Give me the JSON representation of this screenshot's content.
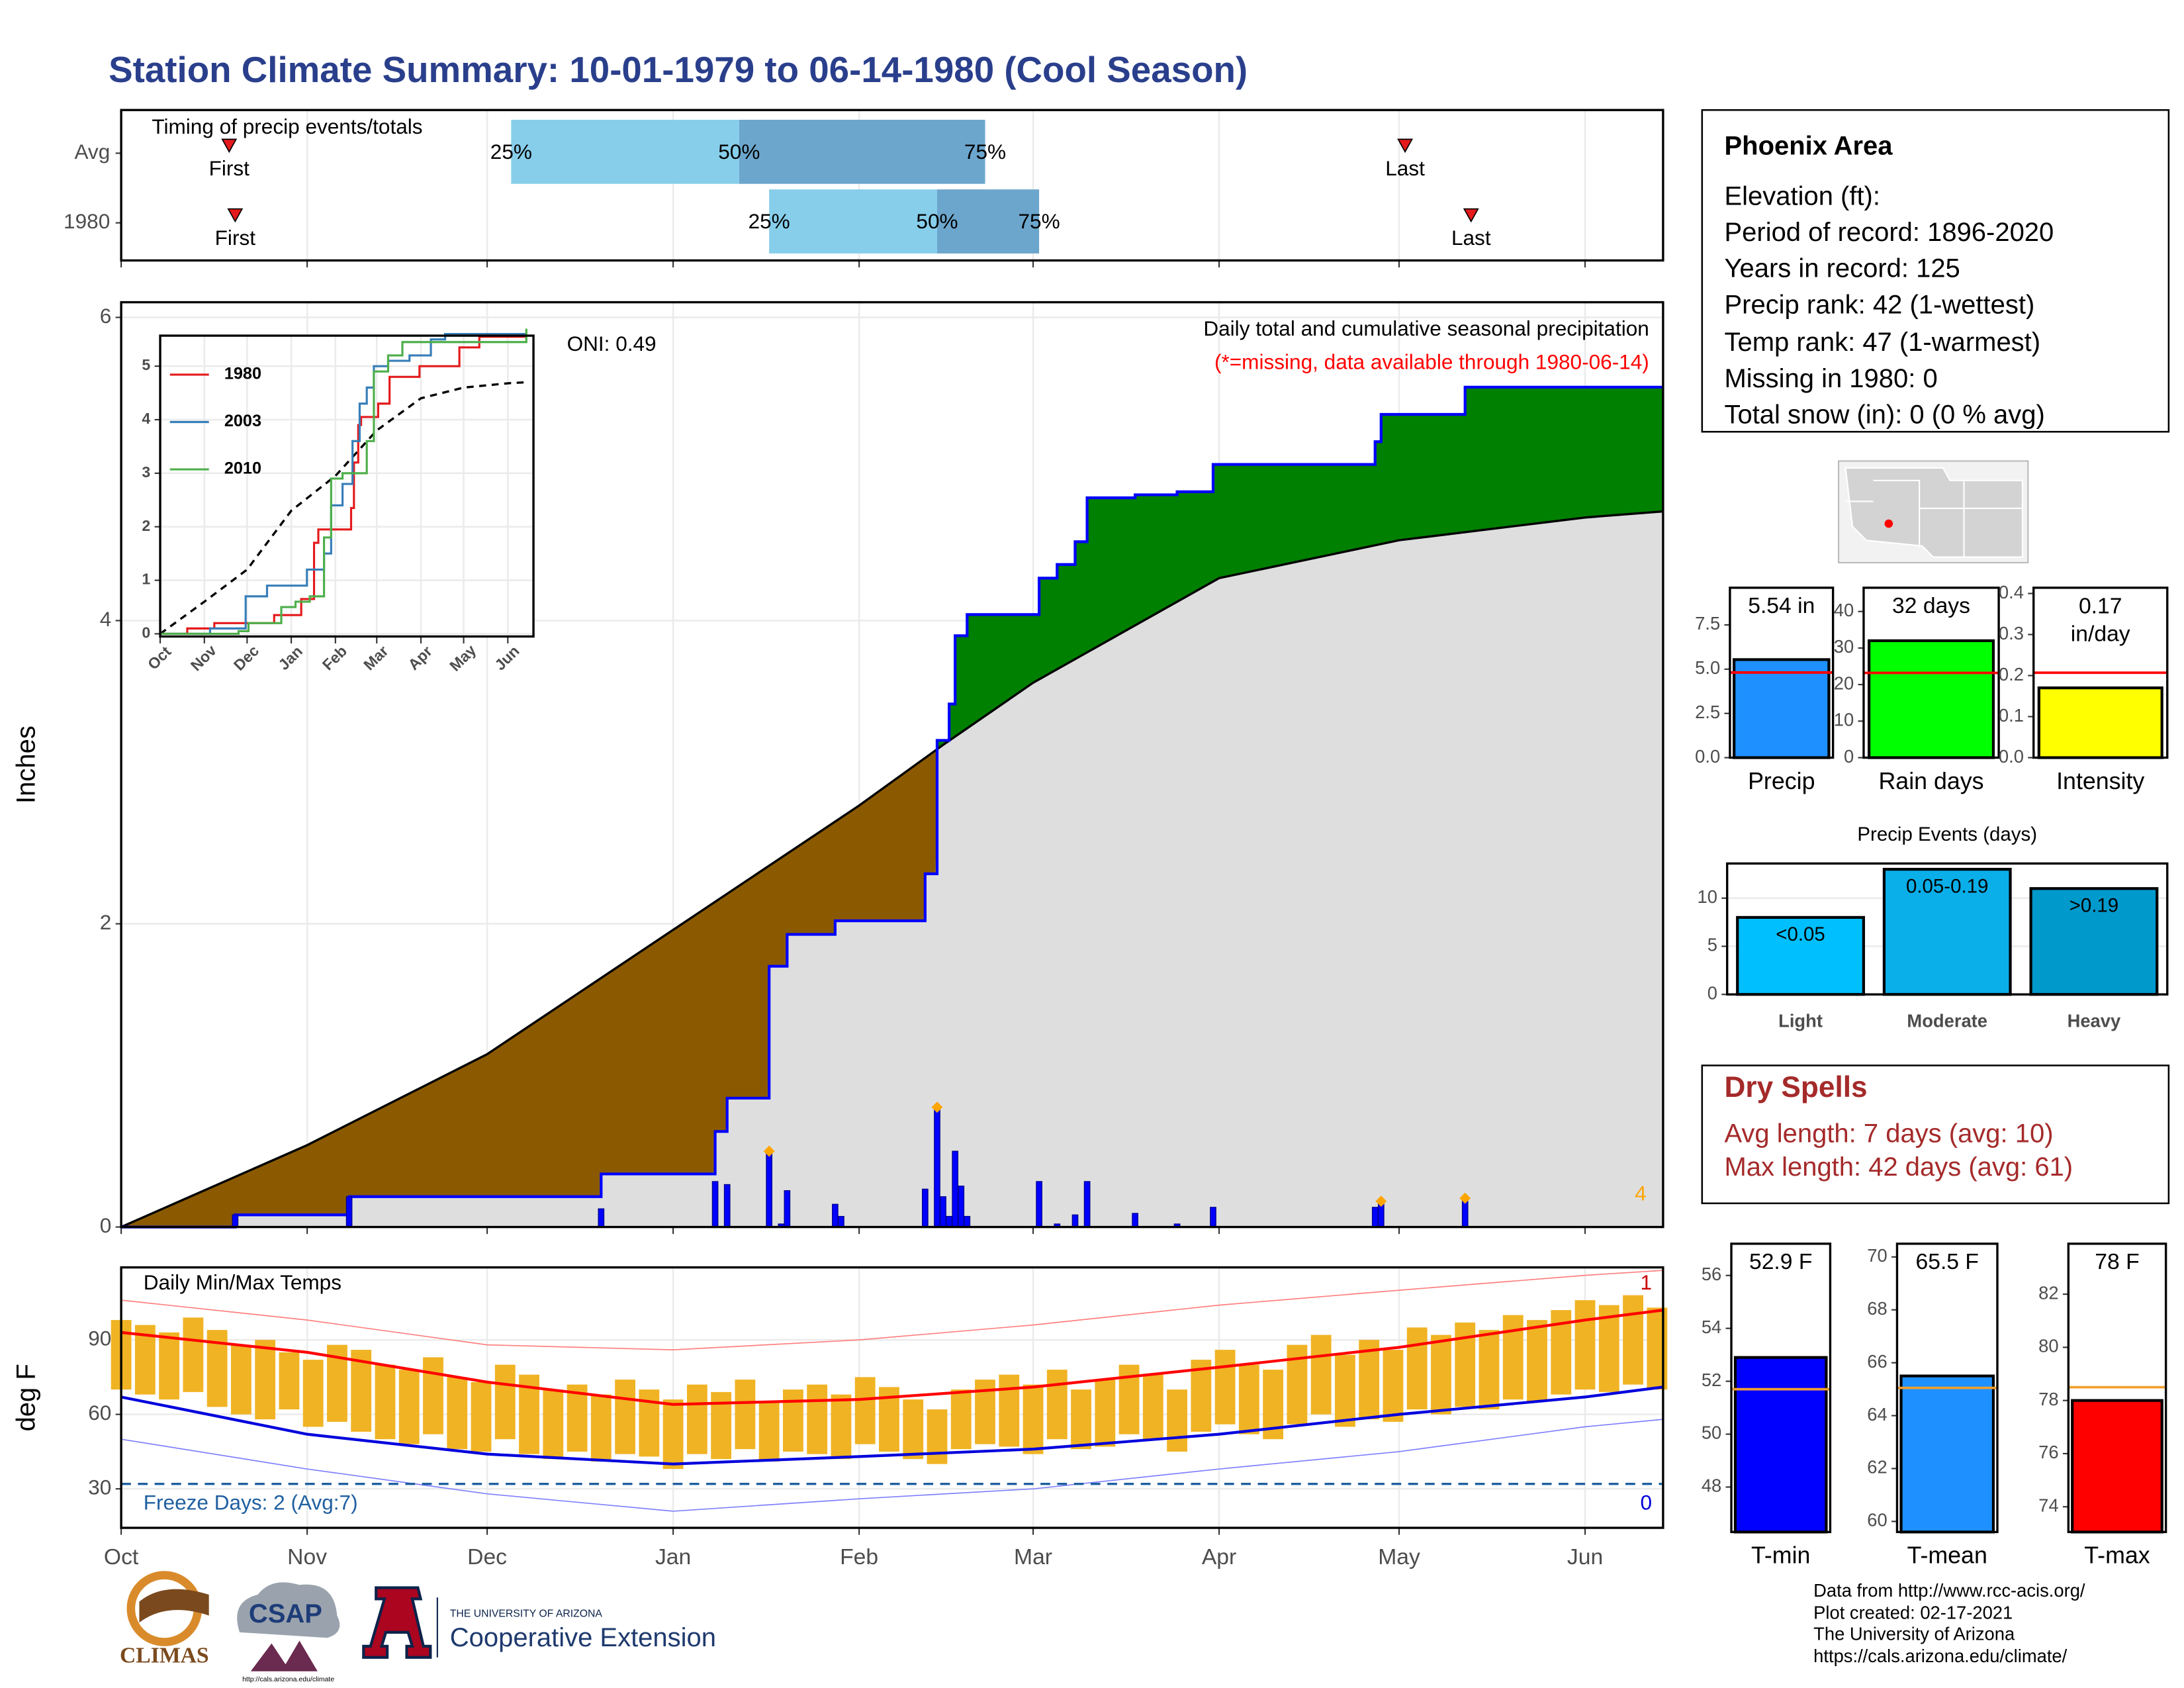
{
  "header": {
    "title": "Station Climate Summary: 10-01-1979 to 06-14-1980 (Cool Season)"
  },
  "station": {
    "name": "Phoenix Area",
    "lines": [
      "Elevation (ft):",
      "Period of record: 1896-2020",
      "Years in record: 125",
      "Precip rank: 42 (1-wettest)",
      "Temp rank: 47 (1-warmest)",
      "Missing in 1980: 0",
      "Total snow (in): 0 (0 % avg)"
    ]
  },
  "dry_spells": {
    "title": "Dry Spells",
    "lines": [
      "Avg length: 7 days (avg: 10)",
      "Max length: 42 days (avg: 61)"
    ]
  },
  "footer": {
    "credits": [
      "Data from http://www.rcc-acis.org/",
      "Plot created: 02-17-2021",
      "The University of Arizona",
      "https://cals.arizona.edu/climate/"
    ],
    "logos": {
      "climas": "CLIMAS",
      "csap": "CSAP",
      "csap_url": "http://cals.arizona.edu/climate",
      "university": "THE UNIVERSITY OF ARIZONA",
      "extension": "Cooperative Extension"
    }
  },
  "chart_data": [
    {
      "type": "timeline",
      "title": "Timing of precip events/totals",
      "xlim": [
        0,
        257
      ],
      "xticks": [
        0,
        31,
        61,
        92,
        123,
        152,
        183,
        213,
        244
      ],
      "percentile_labels": [
        "25%",
        "50%",
        "75%"
      ],
      "first_label": "First",
      "last_label": "Last",
      "colors": [
        "#87ceeb",
        "#6ca6cd"
      ],
      "marker_color": "#e41a1c",
      "rows": [
        {
          "label": "Avg",
          "first": 18,
          "percentiles": [
            65,
            103,
            144
          ],
          "last": 214
        },
        {
          "label": "1980",
          "first": 19,
          "percentiles": [
            108,
            136,
            153
          ],
          "last": 225
        }
      ]
    },
    {
      "type": "precip",
      "ylabel": "Inches",
      "title": "Daily total and cumulative seasonal precipitation",
      "note": "(*=missing, data available through 1980-06-14)",
      "oni": "ONI: 0.49",
      "event_count": 4,
      "xlim": [
        0,
        257
      ],
      "ylim": [
        0,
        6.1
      ],
      "yticks": [
        0,
        2,
        4,
        6
      ],
      "grid": true,
      "xticks": [
        {
          "value": 0,
          "label": "Oct"
        },
        {
          "value": 31,
          "label": "Nov"
        },
        {
          "value": 61,
          "label": "Dec"
        },
        {
          "value": 92,
          "label": "Jan"
        },
        {
          "value": 123,
          "label": "Feb"
        },
        {
          "value": 152,
          "label": "Mar"
        },
        {
          "value": 183,
          "label": "Apr"
        },
        {
          "value": 213,
          "label": "May"
        },
        {
          "value": 244,
          "label": "Jun"
        }
      ],
      "above_average_color": "#008000",
      "below_average_color": "#8b5a00",
      "base_color": "#dedede",
      "observed": {
        "color": "#0000ff",
        "x": [
          0,
          19,
          38,
          80,
          99,
          101,
          108,
          111,
          119,
          134,
          136,
          138,
          139,
          141,
          153,
          156,
          159,
          161,
          169,
          176,
          182,
          209,
          210,
          224,
          257
        ],
        "values": [
          0,
          0.08,
          0.2,
          0.35,
          0.63,
          0.85,
          1.72,
          1.93,
          2.02,
          2.33,
          3.21,
          3.45,
          3.9,
          4.04,
          4.28,
          4.37,
          4.52,
          4.81,
          4.83,
          4.85,
          5.03,
          5.18,
          5.36,
          5.54,
          5.54
        ]
      },
      "average": {
        "color": "#000000",
        "x": [
          0,
          31,
          61,
          92,
          123,
          137,
          152,
          183,
          213,
          244,
          257
        ],
        "values": [
          0,
          0.54,
          1.14,
          1.96,
          2.78,
          3.18,
          3.59,
          4.28,
          4.53,
          4.68,
          4.72
        ]
      },
      "daily": {
        "color": "#0000ff",
        "x": [
          19,
          38,
          80,
          99,
          101,
          108,
          110,
          111,
          119,
          120,
          134,
          136,
          137,
          138,
          139,
          140,
          141,
          153,
          156,
          159,
          161,
          169,
          176,
          182,
          209,
          210,
          224
        ],
        "values": [
          0.08,
          0.2,
          0.12,
          0.3,
          0.28,
          0.5,
          0.02,
          0.24,
          0.15,
          0.07,
          0.25,
          0.79,
          0.2,
          0.07,
          0.5,
          0.27,
          0.07,
          0.3,
          0.02,
          0.08,
          0.3,
          0.09,
          0.02,
          0.13,
          0.13,
          0.17,
          0.19
        ]
      },
      "diamonds": {
        "color": "#ffa500",
        "x": [
          108,
          136,
          210,
          224
        ],
        "values": [
          0.5,
          0.79,
          0.17,
          0.19
        ]
      }
    },
    {
      "type": "line",
      "step": true,
      "xlim": [
        0,
        262
      ],
      "ylim": [
        -0.05,
        5.57
      ],
      "yticks": [
        0,
        1,
        2,
        3,
        4,
        5
      ],
      "grid": true,
      "xticks": [
        {
          "value": 0,
          "label": "Oct"
        },
        {
          "value": 31,
          "label": "Nov"
        },
        {
          "value": 61,
          "label": "Dec"
        },
        {
          "value": 92,
          "label": "Jan"
        },
        {
          "value": 123,
          "label": "Feb"
        },
        {
          "value": 152,
          "label": "Mar"
        },
        {
          "value": 183,
          "label": "Apr"
        },
        {
          "value": 213,
          "label": "May"
        },
        {
          "value": 244,
          "label": "Jun"
        }
      ],
      "series": [
        {
          "name": "1980",
          "color": "#e41a1c",
          "x": [
            0,
            19,
            38,
            80,
            99,
            108,
            111,
            134,
            136,
            139,
            141,
            153,
            161,
            182,
            210,
            224,
            257
          ],
          "values": [
            0,
            0.1,
            0.2,
            0.35,
            0.65,
            1.7,
            1.95,
            2.35,
            3.2,
            3.9,
            4.05,
            4.3,
            4.8,
            5.0,
            5.35,
            5.55,
            5.55
          ]
        },
        {
          "name": "2003",
          "color": "#377eb8",
          "x": [
            0,
            35,
            60,
            75,
            103,
            115,
            120,
            128,
            135,
            140,
            145,
            150,
            160,
            175,
            190,
            200,
            257
          ],
          "values": [
            0,
            0.1,
            0.7,
            0.9,
            1.2,
            1.5,
            2.4,
            2.8,
            3.6,
            4.3,
            4.6,
            5.0,
            5.1,
            5.2,
            5.5,
            5.6,
            5.6
          ]
        },
        {
          "name": "2010",
          "color": "#4daf4a",
          "x": [
            0,
            55,
            62,
            85,
            95,
            105,
            115,
            120,
            128,
            145,
            150,
            160,
            170,
            257
          ],
          "values": [
            0,
            0.05,
            0.2,
            0.5,
            0.6,
            0.7,
            1.8,
            2.9,
            3.0,
            3.6,
            4.9,
            5.2,
            5.45,
            5.7
          ]
        }
      ],
      "average": {
        "color": "#000000",
        "x": [
          0,
          31,
          61,
          92,
          123,
          152,
          183,
          213,
          244,
          257
        ],
        "values": [
          0,
          0.6,
          1.2,
          2.3,
          2.95,
          3.8,
          4.4,
          4.6,
          4.68,
          4.7
        ]
      }
    },
    {
      "type": "temperature",
      "title": "Daily Min/Max Temps",
      "ylabel": "deg F",
      "freeze_label": "Freeze Days: 2 (Avg:7)",
      "record_high_count": 1,
      "record_low_count": 0,
      "freeze_line": 32,
      "xlim": [
        0,
        257
      ],
      "ylim": [
        14.3,
        119.2
      ],
      "yticks": [
        30,
        60,
        90
      ],
      "grid": true,
      "xticks": [
        {
          "value": 0,
          "label": "Oct"
        },
        {
          "value": 31,
          "label": "Nov"
        },
        {
          "value": 61,
          "label": "Dec"
        },
        {
          "value": 92,
          "label": "Jan"
        },
        {
          "value": 123,
          "label": "Feb"
        },
        {
          "value": 152,
          "label": "Mar"
        },
        {
          "value": 183,
          "label": "Apr"
        },
        {
          "value": 213,
          "label": "May"
        },
        {
          "value": 244,
          "label": "Jun"
        }
      ],
      "bar_color": "#f0b323",
      "freeze_color": "#1f5fa0",
      "x": [
        0,
        4,
        8,
        12,
        16,
        20,
        24,
        28,
        32,
        36,
        40,
        44,
        48,
        52,
        56,
        60,
        64,
        68,
        72,
        76,
        80,
        84,
        88,
        92,
        96,
        100,
        104,
        108,
        112,
        116,
        120,
        124,
        128,
        132,
        136,
        140,
        144,
        148,
        152,
        156,
        160,
        164,
        168,
        172,
        176,
        180,
        184,
        188,
        192,
        196,
        200,
        204,
        208,
        212,
        216,
        220,
        224,
        228,
        232,
        236,
        240,
        244,
        248,
        252,
        256
      ],
      "tmax": [
        98,
        96,
        93,
        99,
        94,
        88,
        90,
        85,
        82,
        88,
        86,
        80,
        78,
        83,
        75,
        73,
        80,
        76,
        70,
        72,
        68,
        74,
        70,
        66,
        72,
        69,
        74,
        65,
        70,
        72,
        68,
        75,
        71,
        66,
        62,
        70,
        74,
        76,
        72,
        78,
        70,
        74,
        80,
        76,
        70,
        82,
        86,
        80,
        78,
        88,
        92,
        84,
        90,
        86,
        95,
        92,
        97,
        94,
        100,
        98,
        102,
        106,
        104,
        108,
        103
      ],
      "tmin": [
        70,
        68,
        66,
        69,
        63,
        60,
        58,
        62,
        55,
        57,
        53,
        50,
        48,
        52,
        46,
        45,
        50,
        44,
        42,
        45,
        41,
        44,
        43,
        38,
        44,
        42,
        46,
        41,
        45,
        44,
        42,
        48,
        45,
        42,
        40,
        46,
        48,
        47,
        44,
        50,
        46,
        47,
        52,
        50,
        45,
        53,
        56,
        52,
        50,
        56,
        60,
        55,
        58,
        57,
        62,
        60,
        63,
        62,
        66,
        65,
        68,
        70,
        69,
        72,
        70
      ],
      "average_max": {
        "color": "#ff0000",
        "x": [
          0,
          31,
          61,
          92,
          123,
          152,
          183,
          213,
          244,
          257
        ],
        "values": [
          93,
          85,
          73,
          64,
          66,
          71,
          79,
          87,
          98,
          102
        ]
      },
      "average_min": {
        "color": "#0000dd",
        "x": [
          0,
          31,
          61,
          92,
          123,
          152,
          183,
          213,
          244,
          257
        ],
        "values": [
          67,
          52,
          44,
          40,
          43,
          46,
          52,
          60,
          67,
          71
        ]
      },
      "record_max": {
        "color": "#ff8080",
        "x": [
          0,
          31,
          61,
          92,
          123,
          152,
          183,
          213,
          244,
          257
        ],
        "values": [
          106,
          98,
          88,
          86,
          90,
          96,
          104,
          110,
          116,
          118
        ]
      },
      "record_min": {
        "color": "#8080ff",
        "x": [
          0,
          31,
          61,
          92,
          123,
          152,
          183,
          213,
          244,
          257
        ],
        "values": [
          50,
          38,
          28,
          21,
          26,
          30,
          38,
          45,
          55,
          58
        ]
      }
    },
    {
      "type": "bar",
      "categories": [
        "Precip"
      ],
      "values": [
        5.54
      ],
      "value_labels": [
        "5.54 in"
      ],
      "colors": [
        "#1e90ff"
      ],
      "average": 4.81,
      "average_color": "#ff0000",
      "ylim": [
        0,
        9.6
      ],
      "yticks": [
        {
          "value": 0,
          "label": "0.0"
        },
        {
          "value": 2.5,
          "label": "2.5"
        },
        {
          "value": 5,
          "label": "5.0"
        },
        {
          "value": 7.5,
          "label": "7.5"
        }
      ],
      "grid": false
    },
    {
      "type": "bar",
      "categories": [
        "Rain days"
      ],
      "values": [
        32
      ],
      "value_labels": [
        "32 days"
      ],
      "colors": [
        "#00ff00"
      ],
      "average": 23.2,
      "average_color": "#ff0000",
      "ylim": [
        0,
        46.5
      ],
      "yticks": [
        0,
        10,
        20,
        30,
        40
      ],
      "grid": false
    },
    {
      "type": "bar",
      "categories": [
        "Intensity"
      ],
      "values": [
        0.17
      ],
      "value_labels": [
        "0.17\nin/day"
      ],
      "colors": [
        "#ffff00"
      ],
      "average": 0.207,
      "average_color": "#ff0000",
      "ylim": [
        0,
        0.414
      ],
      "yticks": [
        {
          "value": 0,
          "label": "0.0"
        },
        0.1,
        0.2,
        0.3,
        0.4
      ],
      "grid": false
    },
    {
      "type": "bar",
      "title": "Precip Events (days)",
      "categories": [
        "Light",
        "Moderate",
        "Heavy"
      ],
      "values": [
        8,
        13,
        11
      ],
      "bin_labels": [
        "<0.05",
        "0.05-0.19",
        ">0.19"
      ],
      "colors": [
        "#00bfff",
        "#0aaee8",
        "#0099cc"
      ],
      "ylim": [
        0,
        13.6
      ],
      "yticks": [
        0,
        5,
        10
      ],
      "grid": true
    },
    {
      "type": "bar",
      "categories": [
        "T-min"
      ],
      "values": [
        52.9
      ],
      "value_labels": [
        "52.9 F"
      ],
      "colors": [
        "#0000ff"
      ],
      "average": 51.7,
      "average_color": "#f0a030",
      "ylim": [
        46.3,
        57.2
      ],
      "yticks": [
        48,
        50,
        52,
        54,
        56
      ],
      "grid": false
    },
    {
      "type": "bar",
      "categories": [
        "T-mean"
      ],
      "values": [
        65.5
      ],
      "value_labels": [
        "65.5 F"
      ],
      "colors": [
        "#1e90ff"
      ],
      "average": 65.05,
      "average_color": "#f0a030",
      "ylim": [
        59.6,
        70.5
      ],
      "yticks": [
        60,
        62,
        64,
        66,
        68,
        70
      ],
      "grid": false
    },
    {
      "type": "bar",
      "categories": [
        "T-max"
      ],
      "values": [
        78
      ],
      "value_labels": [
        "78 F"
      ],
      "colors": [
        "#ff0000"
      ],
      "average": 78.5,
      "average_color": "#f0a030",
      "ylim": [
        73.05,
        83.9
      ],
      "yticks": [
        74,
        76,
        78,
        80,
        82
      ],
      "grid": false
    }
  ]
}
